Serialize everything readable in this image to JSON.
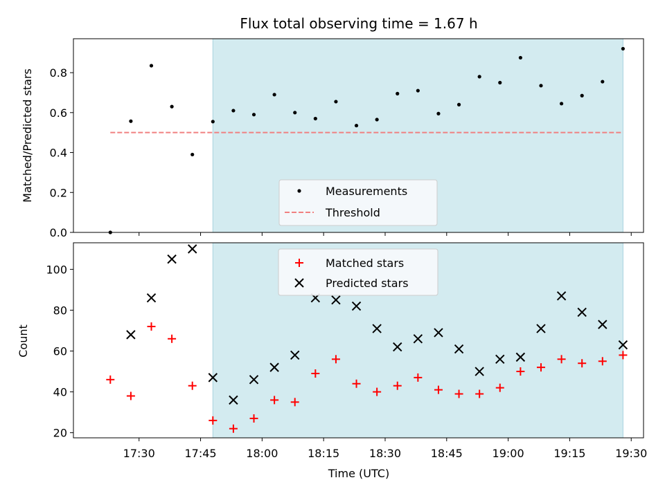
{
  "chart_data": [
    {
      "type": "scatter",
      "title": "Flux total observing time = 1.67 h",
      "xlabel": "",
      "ylabel": "Matched/Predicted stars",
      "ylim": [
        0.0,
        0.97
      ],
      "yticks": [
        "0.0",
        "0.2",
        "0.4",
        "0.6",
        "0.8"
      ],
      "x_axis": {
        "start": "17:14",
        "end": "19:33",
        "tick_labels_shown": false
      },
      "shaded_span": {
        "from": "17:48",
        "to": "19:28",
        "color": "#d3ebf0"
      },
      "threshold_series": {
        "name": "Threshold",
        "color": "#f08080",
        "style": "dashed",
        "x": [
          "17:23",
          "19:28"
        ],
        "y": 0.5
      },
      "series": [
        {
          "name": "Measurements",
          "marker": "dot",
          "color": "#000000",
          "x": [
            "17:23",
            "17:28",
            "17:33",
            "17:38",
            "17:43",
            "17:48",
            "17:53",
            "17:58",
            "18:03",
            "18:08",
            "18:13",
            "18:18",
            "18:23",
            "18:28",
            "18:33",
            "18:38",
            "18:43",
            "18:48",
            "18:53",
            "18:58",
            "19:03",
            "19:08",
            "19:13",
            "19:18",
            "19:23",
            "19:28"
          ],
          "y": [
            0.0,
            0.557,
            0.835,
            0.63,
            0.39,
            0.555,
            0.61,
            0.59,
            0.69,
            0.6,
            0.57,
            0.655,
            0.535,
            0.565,
            0.695,
            0.71,
            0.595,
            0.64,
            0.78,
            0.75,
            0.875,
            0.735,
            0.645,
            0.685,
            0.755,
            0.92
          ]
        }
      ],
      "legend": {
        "placement": "bottom-center",
        "entries": [
          "Measurements",
          "Threshold"
        ]
      }
    },
    {
      "type": "scatter",
      "title": "",
      "xlabel": "Time (UTC)",
      "ylabel": "Count",
      "ylim": [
        17.5,
        113
      ],
      "yticks": [
        "20",
        "40",
        "60",
        "80",
        "100"
      ],
      "x_axis": {
        "start": "17:14",
        "end": "19:33",
        "tick_labels": [
          "17:30",
          "17:45",
          "18:00",
          "18:15",
          "18:30",
          "18:45",
          "19:00",
          "19:15",
          "19:30"
        ]
      },
      "shaded_span": {
        "from": "17:48",
        "to": "19:28",
        "color": "#d3ebf0"
      },
      "series": [
        {
          "name": "Matched stars",
          "marker": "plus",
          "color": "#ff0000",
          "x": [
            "17:23",
            "17:28",
            "17:33",
            "17:38",
            "17:43",
            "17:48",
            "17:53",
            "17:58",
            "18:03",
            "18:08",
            "18:13",
            "18:18",
            "18:23",
            "18:28",
            "18:33",
            "18:38",
            "18:43",
            "18:48",
            "18:53",
            "18:58",
            "19:03",
            "19:08",
            "19:13",
            "19:18",
            "19:23",
            "19:28"
          ],
          "y": [
            46,
            38,
            72,
            66,
            43,
            26,
            22,
            27,
            36,
            35,
            49,
            56,
            44,
            40,
            43,
            47,
            41,
            39,
            39,
            42,
            50,
            52,
            56,
            54,
            55,
            58
          ]
        },
        {
          "name": "Predicted stars",
          "marker": "x",
          "color": "#000000",
          "x": [
            "17:28",
            "17:33",
            "17:38",
            "17:43",
            "17:48",
            "17:53",
            "17:58",
            "18:03",
            "18:08",
            "18:13",
            "18:18",
            "18:23",
            "18:28",
            "18:33",
            "18:38",
            "18:43",
            "18:48",
            "18:53",
            "18:58",
            "19:03",
            "19:08",
            "19:13",
            "19:18",
            "19:23",
            "19:28"
          ],
          "y": [
            68,
            86,
            105,
            110,
            47,
            36,
            46,
            52,
            58,
            86,
            85,
            82,
            71,
            62,
            66,
            69,
            61,
            50,
            56,
            57,
            71,
            87,
            79,
            73,
            63
          ]
        }
      ],
      "legend": {
        "placement": "top-center",
        "entries": [
          "Matched stars",
          "Predicted stars"
        ]
      }
    }
  ]
}
